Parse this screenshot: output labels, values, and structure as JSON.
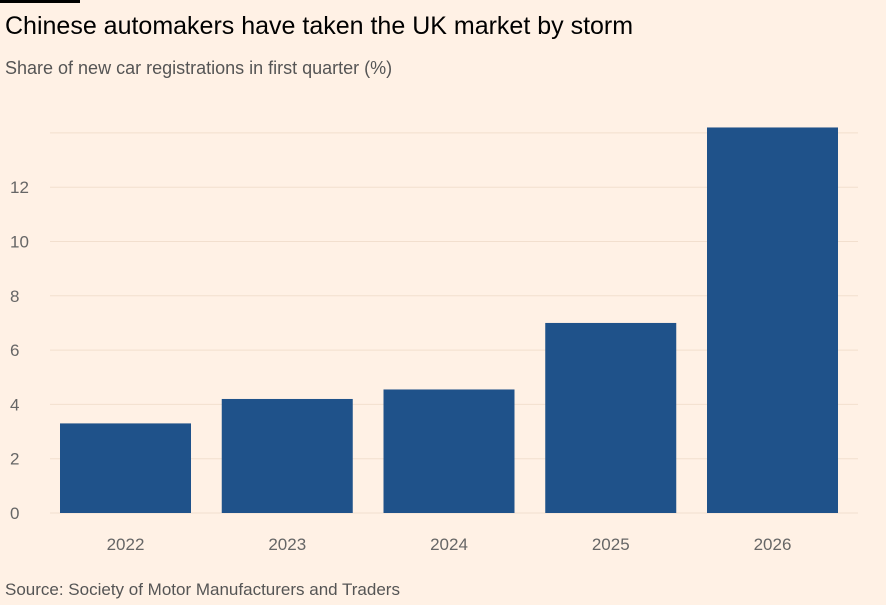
{
  "header": {
    "title": "Chinese automakers have taken the UK market by storm",
    "subtitle": "Share of new car registrations in first quarter (%)"
  },
  "footer": {
    "source": "Source: Society of Motor Manufacturers and Traders"
  },
  "colors": {
    "background": "#FFF1E5",
    "bar": "#1F528A",
    "grid": "#F2DFCE",
    "tick_text": "#666666",
    "title": "#000000",
    "subtitle": "#555555"
  },
  "chart_data": {
    "type": "bar",
    "title": "Chinese automakers have taken the UK market by storm",
    "subtitle": "Share of new car registrations in first quarter (%)",
    "xlabel": "",
    "ylabel": "Share of new car registrations in first quarter (%)",
    "categories": [
      "2022",
      "2023",
      "2024",
      "2025",
      "2026"
    ],
    "values": [
      3.3,
      4.2,
      4.55,
      7.0,
      14.2
    ],
    "ylim": [
      0,
      14
    ],
    "yticks": [
      0,
      2,
      4,
      6,
      8,
      10,
      12
    ],
    "ytick_labels": [
      "0",
      "2",
      "4",
      "6",
      "8",
      "10",
      "12"
    ],
    "grid": true,
    "legend": "none"
  }
}
